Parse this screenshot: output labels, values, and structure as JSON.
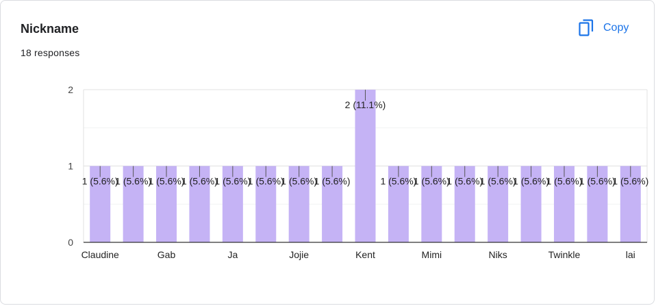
{
  "question": {
    "title": "Nickname",
    "responses_label": "18 responses",
    "copy_label": "Copy"
  },
  "colors": {
    "bar": "#c5b3f5",
    "accent": "#1a73e8"
  },
  "icons": {
    "copy": "copy-icon"
  },
  "chart_data": {
    "type": "bar",
    "categories": [
      "Claudine",
      "",
      "Gab",
      "",
      "Ja",
      "",
      "Jojie",
      "",
      "Kent",
      "",
      "Mimi",
      "",
      "Niks",
      "",
      "Twinkle",
      "",
      "lai"
    ],
    "values": [
      1,
      1,
      1,
      1,
      1,
      1,
      1,
      1,
      2,
      1,
      1,
      1,
      1,
      1,
      1,
      1,
      1
    ],
    "data_labels": [
      "1 (5.6%)",
      "1 (5.6%)",
      "1 (5.6%)",
      "1 (5.6%)",
      "1 (5.6%)",
      "1 (5.6%)",
      "1 (5.6%)",
      "1 (5.6%)",
      "2 (11.1%)",
      "1 (5.6%)",
      "1 (5.6%)",
      "1 (5.6%)",
      "1 (5.6%)",
      "1 (5.6%)",
      "1 (5.6%)",
      "1 (5.6%)",
      "1 (5.6%)"
    ],
    "y_ticks": [
      "0",
      "1",
      "2"
    ],
    "ylim": [
      0,
      2
    ],
    "grid": true
  }
}
